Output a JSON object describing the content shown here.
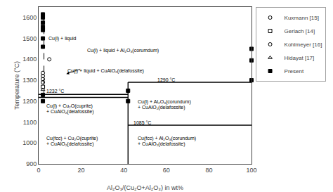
{
  "chart_data": {
    "type": "scatter",
    "x_label": "Al₂O₃/(Cu₂O+Al₂O₃) in wt%",
    "y_label": "Temperature (°C)",
    "xlim": [
      0,
      100
    ],
    "ylim": [
      900,
      1650
    ],
    "xticks": [
      0,
      20,
      40,
      60,
      80,
      100
    ],
    "yticks": [
      900,
      1000,
      1100,
      1200,
      1300,
      1400,
      1500,
      1600
    ],
    "grid": false,
    "legend": "upper right",
    "series": [
      {
        "name": "Kuxmann [15]",
        "type": "scatter",
        "marker": "circle-open",
        "color": "black",
        "x": [
          2.0,
          2.0,
          2.0,
          2.0
        ],
        "values": [
          1290,
          1305,
          1320,
          1335
        ]
      },
      {
        "name": "Gerlach [14]",
        "type": "scatter",
        "marker": "square-open",
        "color": "black",
        "x": [
          2.0
        ],
        "values": [
          1268
        ]
      },
      {
        "name": "Kohlmeyer [16]",
        "type": "scatter",
        "marker": "circle-open",
        "color": "black",
        "x": [
          5.0
        ],
        "values": [
          1400
        ]
      },
      {
        "name": "Hidayat [17]",
        "type": "scatter",
        "marker": "triangle-up-open",
        "color": "black",
        "x": [
          2.0
        ],
        "values": [
          1255
        ]
      },
      {
        "name": "Present",
        "type": "scatter",
        "marker": "square",
        "color": "black",
        "x": [
          2.0,
          2.0,
          2.0,
          2.0,
          2.0,
          2.0,
          2.0,
          2.0,
          2.0,
          42,
          42,
          100,
          100,
          100
        ],
        "values": [
          1460,
          1500,
          1540,
          1555,
          1575,
          1600,
          1615,
          1230,
          1200,
          1250,
          1200,
          1300,
          1395,
          1450
        ]
      },
      {
        "type": "line",
        "color": "black",
        "line_style": "solid",
        "x": [
          42,
          100
        ],
        "values": [
          1290,
          1290
        ]
      },
      {
        "type": "line",
        "color": "black",
        "line_style": "solid",
        "x": [
          0,
          42
        ],
        "values": [
          1232,
          1232
        ]
      },
      {
        "type": "line",
        "color": "black",
        "line_style": "solid",
        "x": [
          0,
          42
        ],
        "values": [
          1218,
          1218
        ]
      },
      {
        "type": "line",
        "color": "black",
        "line_style": "solid",
        "x": [
          42,
          100
        ],
        "values": [
          1085,
          1085
        ]
      },
      {
        "type": "line",
        "color": "black",
        "line_style": "solid",
        "x": [
          42,
          42
        ],
        "values": [
          900,
          1290
        ]
      },
      {
        "type": "line",
        "color": "black",
        "line_style": "dashed",
        "x": [
          2.5,
          2.5
        ],
        "values": [
          1218,
          1640
        ]
      }
    ],
    "annotations": [
      {
        "text": "Cu(l) + liquid",
        "x": 4,
        "y": 1500
      },
      {
        "text": "Cu(l) + liquid + Al₂O₃(corumdum)",
        "x": 22,
        "y": 1440
      },
      {
        "text": "Cu(l) + liquid + CuAlO₂(delafossite)",
        "x": 13,
        "y": 1345
      },
      {
        "text": "1290 °C",
        "x": 55,
        "y": 1302
      },
      {
        "text": "1232 °C",
        "x": 3,
        "y": 1248
      },
      {
        "text": "1085 °C",
        "x": 44,
        "y": 1097
      },
      {
        "text": "Cu(l) + Cu₂O(cuprite)",
        "x": 3,
        "y": 1175
      },
      {
        "text": "+ CuAlO₂(delafossite)",
        "x": 3,
        "y": 1150
      },
      {
        "text": "Cu(l) + Al₂O₃(corundum)",
        "x": 46,
        "y": 1195
      },
      {
        "text": "+ CuAlO₂(delafossite)",
        "x": 46,
        "y": 1170
      },
      {
        "text": "Cu(fcc) + Cu₂O(cuprite)",
        "x": 3,
        "y": 1020
      },
      {
        "text": "+ CuAlO₂(delafossite)",
        "x": 3,
        "y": 995
      },
      {
        "text": "Cu(fcc) + Al₂O₃(corundum)",
        "x": 46,
        "y": 1020
      },
      {
        "text": "+ CuAlO₂(delafossite)",
        "x": 46,
        "y": 995
      },
      {
        "x": 20,
        "y": 1355,
        "arrow_to": [
          13,
          1330
        ]
      }
    ]
  }
}
